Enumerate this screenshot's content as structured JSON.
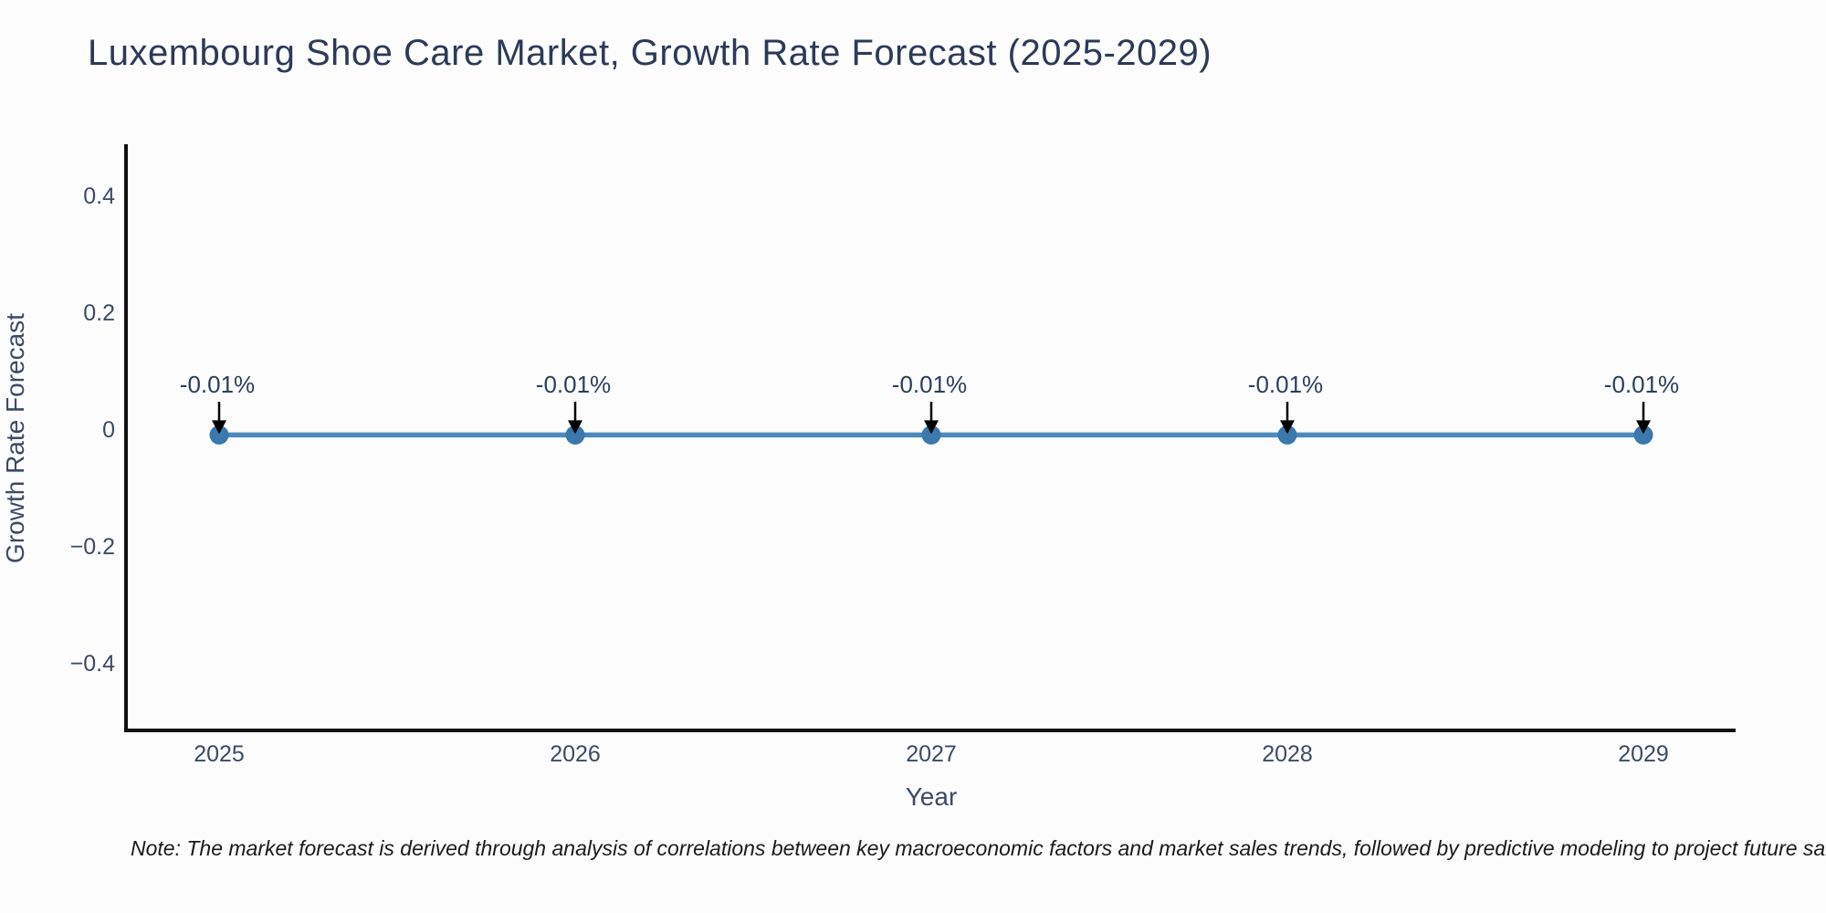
{
  "chart_data": {
    "type": "line",
    "title": "Luxembourg Shoe Care Market, Growth Rate Forecast (2025-2029)",
    "xlabel": "Year",
    "ylabel": "Growth Rate Forecast",
    "categories": [
      "2025",
      "2026",
      "2027",
      "2028",
      "2029"
    ],
    "series": [
      {
        "name": "Growth Rate Forecast",
        "values": [
          -0.01,
          -0.01,
          -0.01,
          -0.01,
          -0.01
        ],
        "point_labels": [
          "-0.01%",
          "-0.01%",
          "-0.01%",
          "-0.01%",
          "-0.01%"
        ]
      }
    ],
    "yticks": [
      0.4,
      0.2,
      0,
      -0.2,
      -0.4
    ],
    "ytick_labels": [
      "0.4",
      "0.2",
      "0",
      "−0.2",
      "−0.4"
    ],
    "ylim": [
      -0.52,
      0.49
    ],
    "grid": false,
    "legend_position": "none",
    "annotation_arrows": true,
    "colors": {
      "line": "#4d89ba",
      "marker": "#3a78ad",
      "arrow": "#000000",
      "axis_line": "#111111",
      "tick_text": "#3b4a66",
      "annotation_text": "#2a3f5f",
      "title_text": "#2c3a58"
    }
  },
  "footnote": "Note: The market forecast is derived through analysis of correlations between key macroeconomic factors and market sales trends, followed by predictive modeling to project future sales"
}
